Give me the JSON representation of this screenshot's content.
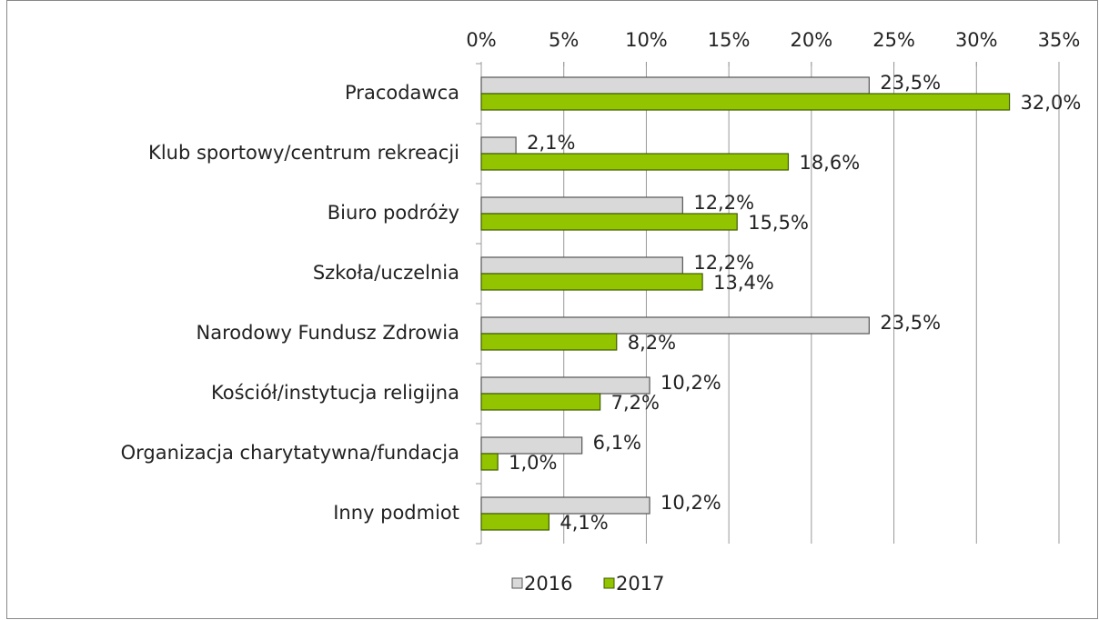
{
  "chart_data": {
    "type": "hbar",
    "categories": [
      "Pracodawca",
      "Klub sportowy/centrum rekreacji",
      "Biuro podróży",
      "Szkoła/uczelnia",
      "Narodowy Fundusz Zdrowia",
      "Kościół/instytucja religijna",
      "Organizacja charytatywna/fundacja",
      "Inny podmiot"
    ],
    "series": [
      {
        "name": "2016",
        "color": "#d9d9d9",
        "values": [
          23.5,
          2.1,
          12.2,
          12.2,
          23.5,
          10.2,
          6.1,
          10.2
        ],
        "value_labels": [
          "23,5%",
          "2,1%",
          "12,2%",
          "12,2%",
          "23,5%",
          "10,2%",
          "6,1%",
          "10,2%"
        ]
      },
      {
        "name": "2017",
        "color": "#92c400",
        "values": [
          32.0,
          18.6,
          15.5,
          13.4,
          8.2,
          7.2,
          1.0,
          4.1
        ],
        "value_labels": [
          "32,0%",
          "18,6%",
          "15,5%",
          "13,4%",
          "8,2%",
          "7,2%",
          "1,0%",
          "4,1%"
        ]
      }
    ],
    "xlim": [
      0,
      35
    ],
    "xticks": [
      {
        "value": 0,
        "label": "0%"
      },
      {
        "value": 5,
        "label": "5%"
      },
      {
        "value": 10,
        "label": "10%"
      },
      {
        "value": 15,
        "label": "15%"
      },
      {
        "value": 20,
        "label": "20%"
      },
      {
        "value": 25,
        "label": "25%"
      },
      {
        "value": 30,
        "label": "30%"
      },
      {
        "value": 35,
        "label": "35%"
      }
    ],
    "grid": true,
    "legend": "bottom"
  }
}
